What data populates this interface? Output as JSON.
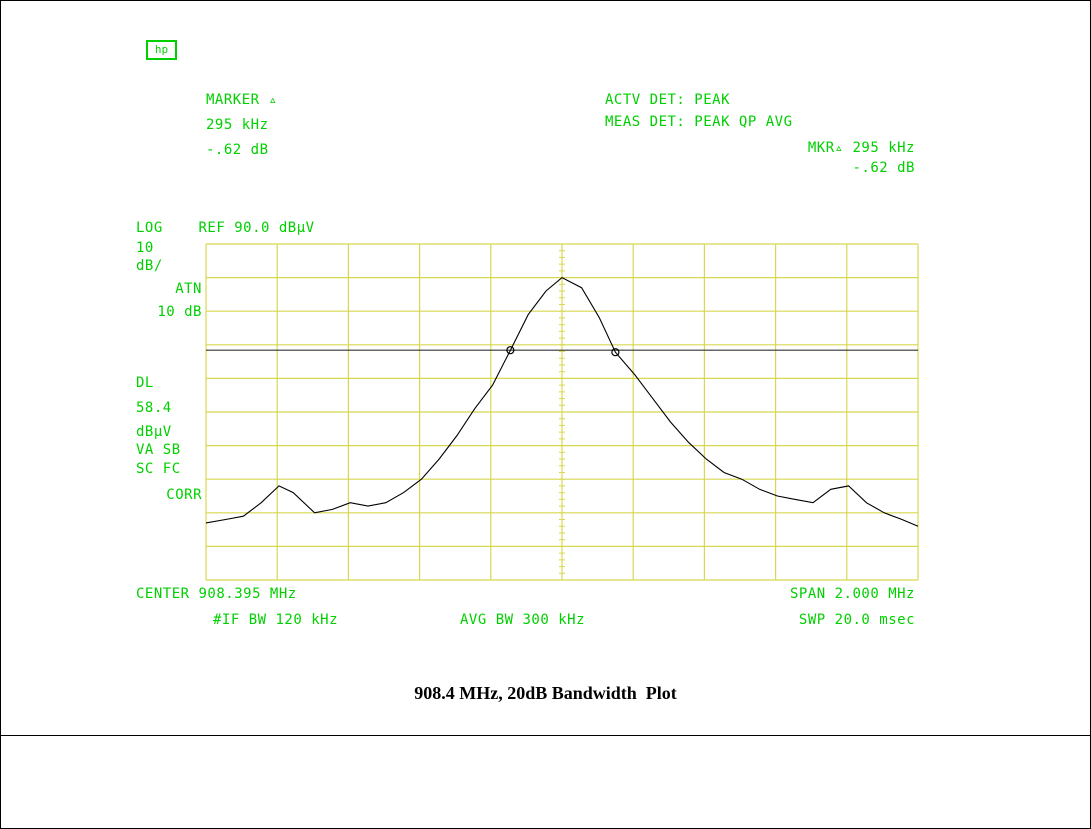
{
  "logo": {
    "text": "hp",
    "icon": "hp-logo-icon"
  },
  "marker": {
    "line1": "MARKER ▵",
    "line2": "295 kHz",
    "line3": "-.62 dB"
  },
  "detector": {
    "line1": "ACTV DET: PEAK",
    "line2": "MEAS DET: PEAK QP AVG",
    "line3": "MKR▵ 295 kHz",
    "line4": "-.62 dB"
  },
  "left_annot": {
    "ref": "LOG    REF 90.0 dBμV",
    "lines": [
      "10",
      "dB/",
      "ATN",
      "10 dB",
      "DL",
      "58.4",
      "dBμV",
      "VA SB",
      "SC FC",
      "CORR"
    ]
  },
  "bottom": {
    "center": "CENTER 908.395 MHz",
    "span": "SPAN 2.000 MHz",
    "if_bw": "#IF BW 120 kHz",
    "avg_bw": "AVG BW 300 kHz",
    "sweep": "SWP 20.0 msec"
  },
  "caption": "908.4 MHz, 20dB Bandwidth  Plot",
  "chart_data": {
    "type": "line",
    "title": "",
    "xlabel": "",
    "ylabel": "",
    "x_unit": "MHz",
    "y_unit": "dBμV",
    "xlim": [
      907.395,
      909.395
    ],
    "ylim": [
      -10,
      90
    ],
    "grid": true,
    "display_line": 58.4,
    "colors": {
      "grid": "#d8d850",
      "trace": "#000000",
      "text": "#00d000"
    },
    "markers": [
      {
        "x": 908.25,
        "y": 58.4
      },
      {
        "x": 908.545,
        "y": 57.8
      }
    ],
    "series": [
      {
        "x": [
          907.395,
          907.45,
          907.5,
          907.55,
          907.6,
          907.64,
          907.7,
          907.75,
          907.8,
          907.85,
          907.9,
          907.95,
          908.0,
          908.05,
          908.1,
          908.15,
          908.2,
          908.25,
          908.3,
          908.35,
          908.395,
          908.45,
          908.5,
          908.545,
          908.6,
          908.65,
          908.7,
          908.75,
          908.8,
          908.85,
          908.9,
          908.95,
          909.0,
          909.05,
          909.1,
          909.15,
          909.2,
          909.25,
          909.3,
          909.35,
          909.395
        ],
        "y": [
          7,
          8,
          9,
          13,
          18,
          16,
          10,
          11,
          13,
          12,
          13,
          16,
          20,
          26,
          33,
          41,
          48,
          58.4,
          69,
          76,
          80,
          77,
          68,
          57.8,
          51,
          44,
          37,
          31,
          26,
          22,
          20,
          17,
          15,
          14,
          13,
          17,
          18,
          13,
          10,
          8,
          6
        ]
      }
    ]
  }
}
